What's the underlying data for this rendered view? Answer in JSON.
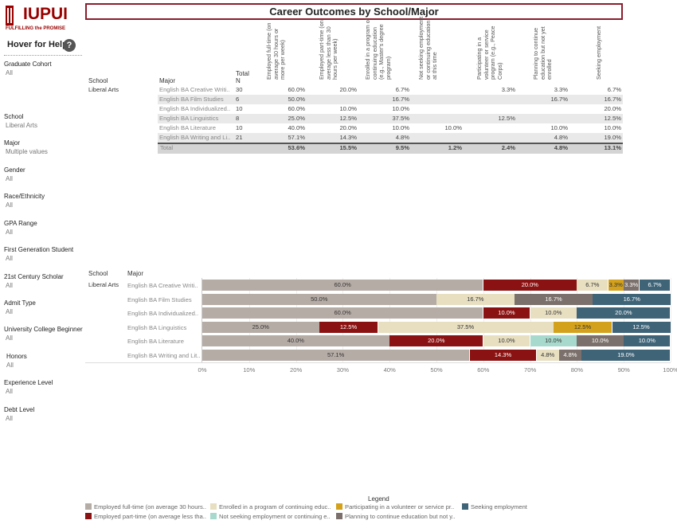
{
  "logo": {
    "name": "IUPUI",
    "tagline": "FULFILLING the PROMISE"
  },
  "sidebar": {
    "help_label": "Hover for Help",
    "help_icon": "?",
    "filters": [
      {
        "label": "Graduate Cohort",
        "value": "All"
      },
      {
        "label": "School",
        "value": "Liberal Arts"
      },
      {
        "label": "Major",
        "value": "Multiple values"
      },
      {
        "label": "Gender",
        "value": "All"
      },
      {
        "label": "Race/Ethnicity",
        "value": "All"
      },
      {
        "label": "GPA Range",
        "value": "All"
      },
      {
        "label": "First Generation Student",
        "value": "All"
      },
      {
        "label": "21st Century Scholar",
        "value": "All"
      },
      {
        "label": "Admit Type",
        "value": "All"
      },
      {
        "label": "University College Beginner",
        "value": "All"
      },
      {
        "label": "Honors",
        "value": "All"
      },
      {
        "label": "Experience Level",
        "value": "All"
      },
      {
        "label": "Debt Level",
        "value": "All"
      }
    ]
  },
  "title": "Career Outcomes by School/Major",
  "table": {
    "school_header": "School",
    "major_header": "Major",
    "n_header": "Total N",
    "columns": [
      "Employed full-time (on average 30 hours or more per week)",
      "Employed part-time (on average less than 30 hours per week)",
      "Enrolled in a program of continuing education (e.g., Master's degree program)",
      "Not seeking employment or continuing education at this time",
      "Participating in a volunteer or service program (e.g., Peace Corps)",
      "Planning to continue education but not yet enrolled",
      "Seeking employment"
    ],
    "school": "Liberal Arts",
    "rows": [
      {
        "major": "English BA Creative Writi..",
        "n": "30",
        "cells": [
          "60.0%",
          "20.0%",
          "6.7%",
          "",
          "3.3%",
          "3.3%",
          "6.7%"
        ]
      },
      {
        "major": "English BA Film Studies",
        "n": "6",
        "cells": [
          "50.0%",
          "",
          "16.7%",
          "",
          "",
          "16.7%",
          "16.7%"
        ]
      },
      {
        "major": "English BA Individualized..",
        "n": "10",
        "cells": [
          "60.0%",
          "10.0%",
          "10.0%",
          "",
          "",
          "",
          "20.0%"
        ]
      },
      {
        "major": "English BA Linguistics",
        "n": "8",
        "cells": [
          "25.0%",
          "12.5%",
          "37.5%",
          "",
          "12.5%",
          "",
          "12.5%"
        ]
      },
      {
        "major": "English BA Literature",
        "n": "10",
        "cells": [
          "40.0%",
          "20.0%",
          "10.0%",
          "10.0%",
          "",
          "10.0%",
          "10.0%"
        ]
      },
      {
        "major": "English BA Writing and Li..",
        "n": "21",
        "cells": [
          "57.1%",
          "14.3%",
          "4.8%",
          "",
          "",
          "4.8%",
          "19.0%"
        ]
      }
    ],
    "total_label": "Total",
    "total_cells": [
      "53.6%",
      "15.5%",
      "9.5%",
      "1.2%",
      "2.4%",
      "4.8%",
      "13.1%"
    ]
  },
  "chart_data": {
    "type": "bar",
    "orientation": "horizontal",
    "stacked": true,
    "school_header": "School",
    "major_header": "Major",
    "school": "Liberal Arts",
    "categories": [
      "English BA Creative Writi..",
      "English BA Film Studies",
      "English BA Individualized..",
      "English BA Linguistics",
      "English BA Literature",
      "English BA Writing and Lit.."
    ],
    "xlim": [
      0,
      100
    ],
    "x_ticks": [
      "0%",
      "10%",
      "20%",
      "30%",
      "40%",
      "50%",
      "60%",
      "70%",
      "80%",
      "90%",
      "100%"
    ],
    "series": [
      {
        "name": "Employed full-time (on average 30 hours..",
        "color": "#b6aca6",
        "values": [
          60.0,
          50.0,
          60.0,
          25.0,
          40.0,
          57.1
        ]
      },
      {
        "name": "Employed part-time (on average less tha..",
        "color": "#8b1212",
        "values": [
          20.0,
          0,
          10.0,
          12.5,
          20.0,
          14.3
        ]
      },
      {
        "name": "Enrolled in a program of continuing educ..",
        "color": "#e8dfc1",
        "values": [
          6.7,
          16.7,
          10.0,
          37.5,
          10.0,
          4.8
        ]
      },
      {
        "name": "Not seeking employment or continuing e..",
        "color": "#a7dacd",
        "values": [
          0,
          0,
          0,
          0,
          10.0,
          0
        ]
      },
      {
        "name": "Participating in a volunteer or service pr..",
        "color": "#d3a11c",
        "values": [
          3.3,
          0,
          0,
          12.5,
          0,
          0
        ]
      },
      {
        "name": "Planning to continue education but not y..",
        "color": "#7b706b",
        "values": [
          3.3,
          16.7,
          0,
          0,
          10.0,
          4.8
        ]
      },
      {
        "name": "Seeking employment",
        "color": "#3f6478",
        "values": [
          6.7,
          16.7,
          20.0,
          12.5,
          10.0,
          19.0
        ]
      }
    ]
  },
  "legend": {
    "title": "Legend"
  }
}
